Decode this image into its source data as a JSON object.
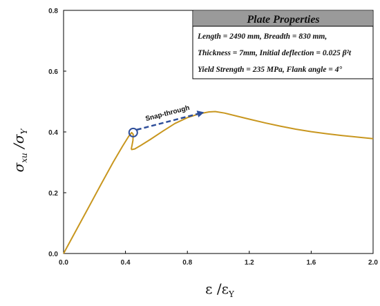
{
  "chart_data": {
    "type": "line",
    "xlabel": "ε /ε",
    "xlabel_sub": "Y",
    "ylabel_main": "σ",
    "ylabel_sub1": "xu",
    "ylabel_mid": " /σ",
    "ylabel_sub2": "Y",
    "xlim": [
      0.0,
      2.0
    ],
    "ylim": [
      0.0,
      0.8
    ],
    "xticks": [
      0.0,
      0.4,
      0.8,
      1.2,
      1.6,
      2.0
    ],
    "xtick_labels": [
      "0.0",
      "0.4",
      "0.8",
      "1.2",
      "1.6",
      "2.0"
    ],
    "yticks": [
      0.0,
      0.2,
      0.4,
      0.6,
      0.8
    ],
    "ytick_labels": [
      "0.0",
      "0.2",
      "0.4",
      "0.6",
      "0.8"
    ],
    "grid": false,
    "legend": {
      "placement": "top-right",
      "title": "Plate Properties",
      "lines": [
        "Length = 2490 mm,  Breadth = 830 mm,",
        "Thickness = 7mm, Initial deflection = 0.025 β²t",
        "Yield Strength = 235 MPa, Flank angle = 4°"
      ]
    },
    "series": [
      {
        "color": "#C8961E",
        "x": [
          0.0,
          0.08,
          0.16,
          0.24,
          0.32,
          0.38,
          0.42,
          0.44,
          0.45,
          0.448,
          0.442,
          0.438,
          0.44,
          0.46,
          0.5,
          0.56,
          0.64,
          0.72,
          0.8,
          0.88,
          0.94,
          0.98,
          1.04,
          1.12,
          1.2,
          1.3,
          1.4,
          1.5,
          1.6,
          1.7,
          1.8,
          1.9,
          2.0
        ],
        "y": [
          0.0,
          0.075,
          0.15,
          0.226,
          0.3,
          0.352,
          0.385,
          0.398,
          0.392,
          0.372,
          0.355,
          0.345,
          0.342,
          0.344,
          0.356,
          0.375,
          0.402,
          0.428,
          0.447,
          0.46,
          0.466,
          0.467,
          0.462,
          0.452,
          0.442,
          0.43,
          0.419,
          0.409,
          0.401,
          0.394,
          0.388,
          0.383,
          0.378
        ]
      }
    ],
    "annotation": {
      "text": "Snap-through",
      "circle_at": [
        0.45,
        0.398
      ],
      "arrow_from": [
        0.45,
        0.398
      ],
      "arrow_to": [
        0.9,
        0.466
      ],
      "color": "#2E4E9A"
    }
  }
}
